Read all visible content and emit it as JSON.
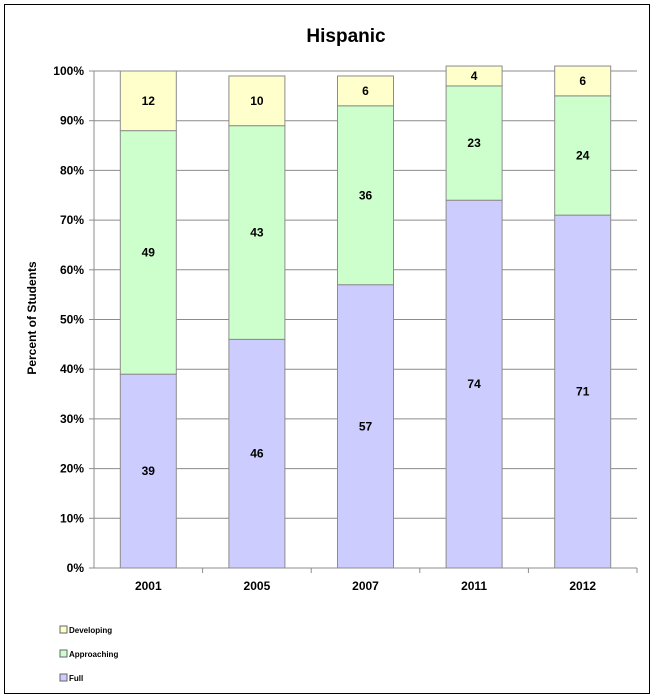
{
  "chart_data": {
    "type": "bar",
    "stacked": true,
    "percent_stacked": true,
    "title": "Hispanic",
    "xlabel": "",
    "ylabel": "Percent of Students",
    "ylim": [
      0,
      100
    ],
    "yticks": [
      "0%",
      "10%",
      "20%",
      "30%",
      "40%",
      "50%",
      "60%",
      "70%",
      "80%",
      "90%",
      "100%"
    ],
    "categories": [
      "2001",
      "2005",
      "2007",
      "2011",
      "2012"
    ],
    "grid": true,
    "legend_position": "bottom-left",
    "series": [
      {
        "name": "Full",
        "values": [
          39,
          46,
          57,
          74,
          71
        ],
        "color": "#ccccff"
      },
      {
        "name": "Approaching",
        "values": [
          49,
          43,
          36,
          23,
          24
        ],
        "color": "#ccffcc"
      },
      {
        "name": "Developing",
        "values": [
          12,
          10,
          6,
          4,
          6
        ],
        "color": "#ffffcc"
      }
    ],
    "legend_order": [
      "Developing",
      "Approaching",
      "Full"
    ]
  }
}
